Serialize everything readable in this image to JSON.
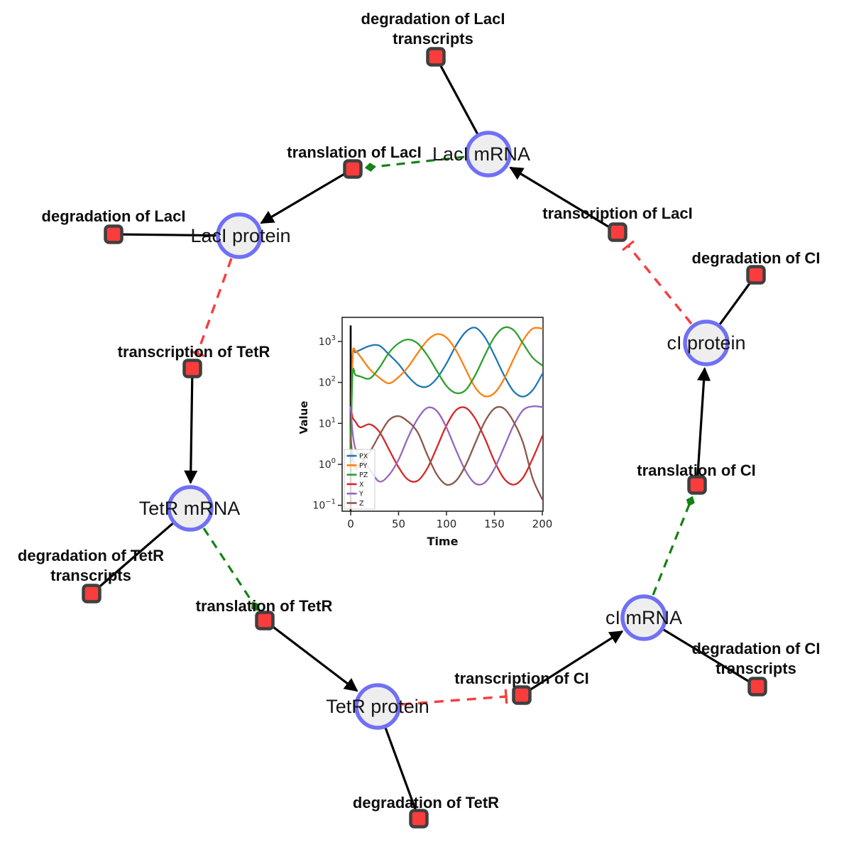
{
  "figure": {
    "background": "#ffffff",
    "description": "repressilator gene regulatory network with embedded simulation time course"
  },
  "diagram": {
    "species_style": {
      "fill": "#eeeeef",
      "border": "#7070f6"
    },
    "reaction_style": {
      "fill": "#fa3c3c",
      "border": "#3f3f3f"
    },
    "edge_colors": {
      "reactant_product": "#000000",
      "modifier": "#148214",
      "inhibitor": "#fa3c3c"
    },
    "species": [
      {
        "id": "laci-mrna",
        "label": "LacI mRNA"
      },
      {
        "id": "laci-protein",
        "label": "LacI protein"
      },
      {
        "id": "tetr-mrna",
        "label": "TetR mRNA"
      },
      {
        "id": "tetr-protein",
        "label": "TetR protein"
      },
      {
        "id": "ci-mrna",
        "label": "cI mRNA"
      },
      {
        "id": "ci-protein",
        "label": "cI protein"
      }
    ],
    "reactions": [
      {
        "id": "degradation-laci-transcripts",
        "line1": "degradation of LacI",
        "line2": "transcripts"
      },
      {
        "id": "translation-laci",
        "line1": "translation of LacI"
      },
      {
        "id": "degradation-laci",
        "line1": "degradation of LacI"
      },
      {
        "id": "transcription-laci",
        "line1": "transcription of LacI"
      },
      {
        "id": "degradation-ci",
        "line1": "degradation of CI"
      },
      {
        "id": "transcription-tetr",
        "line1": "transcription of TetR"
      },
      {
        "id": "degradation-tetr-transcripts",
        "line1": "degradation of TetR",
        "line2": "transcripts"
      },
      {
        "id": "translation-tetr",
        "line1": "translation of TetR"
      },
      {
        "id": "degradation-tetr",
        "line1": "degradation of TetR"
      },
      {
        "id": "transcription-ci",
        "line1": "transcription of CI"
      },
      {
        "id": "degradation-ci-transcripts",
        "line1": "degradation of CI",
        "line2": "transcripts"
      },
      {
        "id": "translation-ci",
        "line1": "translation of CI"
      }
    ],
    "edges": [
      {
        "from": "LacI mRNA",
        "to": "degradation of LacI transcripts",
        "type": "reactant"
      },
      {
        "from": "LacI mRNA",
        "to": "translation of LacI",
        "type": "modifier"
      },
      {
        "from": "translation of LacI",
        "to": "LacI protein",
        "type": "product"
      },
      {
        "from": "LacI protein",
        "to": "degradation of LacI",
        "type": "reactant"
      },
      {
        "from": "LacI protein",
        "to": "transcription of TetR",
        "type": "inhibitor"
      },
      {
        "from": "transcription of TetR",
        "to": "TetR mRNA",
        "type": "product"
      },
      {
        "from": "TetR mRNA",
        "to": "degradation of TetR transcripts",
        "type": "reactant"
      },
      {
        "from": "TetR mRNA",
        "to": "translation of TetR",
        "type": "modifier"
      },
      {
        "from": "translation of TetR",
        "to": "TetR protein",
        "type": "product"
      },
      {
        "from": "TetR protein",
        "to": "degradation of TetR",
        "type": "reactant"
      },
      {
        "from": "TetR protein",
        "to": "transcription of CI",
        "type": "inhibitor"
      },
      {
        "from": "transcription of CI",
        "to": "cI mRNA",
        "type": "product"
      },
      {
        "from": "cI mRNA",
        "to": "degradation of CI transcripts",
        "type": "reactant"
      },
      {
        "from": "cI mRNA",
        "to": "translation of CI",
        "type": "modifier"
      },
      {
        "from": "translation of CI",
        "to": "cI protein",
        "type": "product"
      },
      {
        "from": "cI protein",
        "to": "degradation of CI",
        "type": "reactant"
      },
      {
        "from": "cI protein",
        "to": "transcription of LacI",
        "type": "inhibitor"
      },
      {
        "from": "transcription of LacI",
        "to": "LacI mRNA",
        "type": "product"
      }
    ]
  },
  "chart_data": {
    "type": "line",
    "title": "",
    "xlabel": "Time",
    "ylabel": "Value",
    "y_scale": "log",
    "xlim": [
      -9,
      201
    ],
    "ylim_log": [
      -1.14,
      3.58
    ],
    "x_ticks": [
      0,
      50,
      100,
      150,
      200
    ],
    "y_tick_exponents": [
      -1,
      0,
      1,
      2,
      3
    ],
    "grid": false,
    "legend_position": "lower left",
    "x": [
      0,
      2,
      5,
      10,
      20,
      30,
      40,
      50,
      60,
      70,
      80,
      90,
      100,
      110,
      120,
      130,
      140,
      150,
      160,
      170,
      180,
      190,
      200
    ],
    "series": [
      {
        "name": "PX",
        "color": "#1f77b4",
        "values": [
          2,
          410,
          540,
          620,
          780,
          790,
          480,
          280,
          140,
          85,
          79,
          126,
          290,
          800,
          1700,
          2170,
          1270,
          460,
          150,
          61,
          45,
          65,
          160
        ]
      },
      {
        "name": "PY",
        "color": "#ff7f0e",
        "values": [
          2,
          400,
          580,
          430,
          210,
          130,
          95,
          135,
          240,
          520,
          1060,
          1510,
          1240,
          600,
          210,
          75,
          46,
          55,
          120,
          370,
          1070,
          2060,
          2060
        ]
      },
      {
        "name": "PZ",
        "color": "#2ca02c",
        "values": [
          2,
          160,
          150,
          140,
          125,
          230,
          530,
          900,
          1120,
          890,
          460,
          190,
          82,
          55,
          65,
          150,
          460,
          1270,
          2170,
          1890,
          880,
          400,
          260
        ]
      },
      {
        "name": "X",
        "color": "#d62728",
        "values": [
          25,
          14,
          11,
          8,
          9.5,
          6.2,
          2.3,
          0.85,
          0.42,
          0.4,
          0.8,
          2.6,
          8.9,
          21,
          24,
          13,
          4.3,
          1.2,
          0.45,
          0.32,
          0.48,
          1.4,
          4.9
        ]
      },
      {
        "name": "Y",
        "color": "#9467bd",
        "values": [
          25,
          6,
          2.4,
          1.6,
          0.75,
          0.38,
          0.55,
          1.3,
          4.6,
          13,
          24,
          20,
          7.9,
          2.2,
          0.69,
          0.34,
          0.36,
          0.78,
          2.6,
          8.9,
          21,
          26,
          25
        ]
      },
      {
        "name": "Z",
        "color": "#8c564b",
        "values": [
          5,
          1.5,
          0.8,
          1.0,
          2.0,
          5.2,
          12,
          15,
          11,
          6.0,
          1.7,
          0.56,
          0.32,
          0.4,
          0.95,
          3.3,
          11,
          23,
          23,
          11,
          3.3,
          0.45,
          0.14
        ]
      }
    ],
    "annotations": [
      {
        "type": "vline",
        "x": 0,
        "ylog_from": -1.14,
        "ylog_to": 3.39,
        "color": "#000000"
      }
    ]
  }
}
